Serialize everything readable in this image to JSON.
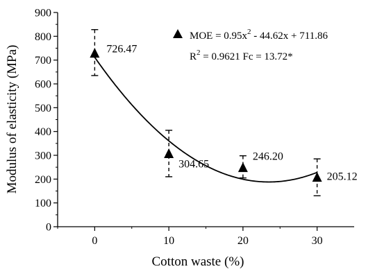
{
  "chart_data": {
    "type": "scatter",
    "xlabel": "Cotton waste (%)",
    "ylabel": "Modulus of elasticity (MPa)",
    "xlim": [
      -5,
      35
    ],
    "ylim": [
      0,
      900
    ],
    "x_ticks": [
      0,
      10,
      20,
      30
    ],
    "x_tick_labels": [
      "0",
      "10",
      "20",
      "30"
    ],
    "y_ticks": [
      0,
      100,
      200,
      300,
      400,
      500,
      600,
      700,
      800,
      900
    ],
    "y_tick_labels": [
      "0",
      "100",
      "200",
      "300",
      "400",
      "500",
      "600",
      "700",
      "800",
      "900"
    ],
    "grid": false,
    "series": [
      {
        "marker": "triangle",
        "color": "#000000",
        "x": [
          0,
          10,
          20,
          30
        ],
        "y": [
          726.47,
          304.65,
          246.2,
          205.12
        ],
        "labels": [
          "726.47",
          "304.65",
          "246.20",
          "205.12"
        ],
        "error_low": [
          635,
          210,
          205,
          130
        ],
        "error_high": [
          828,
          405,
          298,
          285
        ]
      }
    ],
    "fit": {
      "type": "polynomial",
      "coefficients": {
        "a": 0.95,
        "b": -44.62,
        "c": 711.86
      },
      "color": "#000000"
    },
    "legend": {
      "position": "top-right",
      "line1_prefix": "MOE = 0.95x",
      "line1_sup": "2",
      "line1_suffix": " - 44.62x + 711.86",
      "line2_prefix": "R",
      "line2_sup": "2",
      "line2_suffix": " = 0.9621   Fc = 13.72*"
    }
  }
}
